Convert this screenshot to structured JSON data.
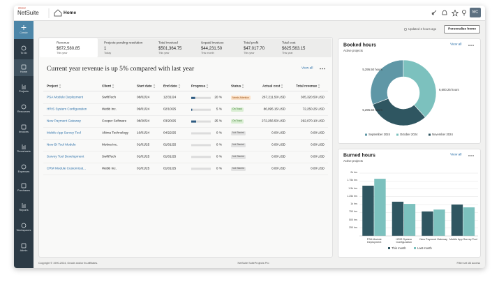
{
  "header": {
    "brand_small": "ORACLE",
    "brand": "NetSuite",
    "page_title": "Home",
    "avatar": "MC"
  },
  "sidebar": [
    "Create",
    "To do",
    "Home",
    "Projects",
    "Resources",
    "Invoices",
    "Timesheets",
    "Expenses",
    "Purchases",
    "Reports",
    "Workspaces",
    "Admin"
  ],
  "toolbar": {
    "updated": "Updated 2 hours ago",
    "button": "Personalize home"
  },
  "kpis": [
    {
      "label": "Revenue",
      "value": "$672,580.85",
      "period": "This year"
    },
    {
      "label": "Projects pending resolution",
      "value": 1,
      "period": "Today"
    },
    {
      "label": "Total invoiced",
      "value": "$501,364.75",
      "period": "This year"
    },
    {
      "label": "Unpaid invoices",
      "value": "$44,231.50",
      "period": "This month"
    },
    {
      "label": "Total profit",
      "value": "$47,017.70",
      "period": "This year"
    },
    {
      "label": "Total cost",
      "value": "$625,563.15",
      "period": "This year"
    }
  ],
  "revenue_panel": {
    "headline": "Current year revenue is up 5% compared with last year",
    "view_all": "View all"
  },
  "table": {
    "columns": [
      "Project",
      "Client",
      "Start date",
      "End date",
      "Progress",
      "Status",
      "Actual cost",
      "Total revenue"
    ],
    "rows": [
      {
        "project": "PSA Module Deployment",
        "client": "SwiftTech",
        "start": "08/02/24",
        "end": "12/31/24",
        "progress": 20,
        "progress_label": "20 %",
        "status": "Needs Attention",
        "actual_cost": "267,211.50 USD",
        "total_revenue": "305,320.50 USD"
      },
      {
        "project": "HRIS System Configuration",
        "client": "Webb Inc.",
        "start": "09/01/24",
        "end": "02/10/25",
        "progress": 5,
        "progress_label": "5 %",
        "status": "On Track",
        "actual_cost": "86,095.15 USD",
        "total_revenue": "72,250.25 USD"
      },
      {
        "project": "New Payment Gateway",
        "client": "Cooper Software",
        "start": "08/20/24",
        "end": "03/20/25",
        "progress": 25,
        "progress_label": "25 %",
        "status": "On Track",
        "actual_cost": "272,256.50 USD",
        "total_revenue": "292,070.10 USD"
      },
      {
        "project": "Mobile App Survey Tool",
        "client": "Altima Technology",
        "start": "10/01/24",
        "end": "04/22/25",
        "progress": 0,
        "progress_label": "0 %",
        "status": "Not Started",
        "actual_cost": "0.00 USD",
        "total_revenue": "0.00 USD"
      },
      {
        "project": "New BI Tool Module",
        "client": "Motiva Inc.",
        "start": "01/01/25",
        "end": "01/01/25",
        "progress": 0,
        "progress_label": "0 %",
        "status": "Not Started",
        "actual_cost": "0.00 USD",
        "total_revenue": "0.00 USD"
      },
      {
        "project": "Survey Tool Development",
        "client": "SwiftTech",
        "start": "01/01/25",
        "end": "01/01/25",
        "progress": 0,
        "progress_label": "0 %",
        "status": "Not Started",
        "actual_cost": "0.00 USD",
        "total_revenue": "0.00 USD"
      },
      {
        "project": "CRM Module Customizat...",
        "client": "Webb Inc.",
        "start": "01/01/25",
        "end": "01/01/25",
        "progress": 0,
        "progress_label": "0 %",
        "status": "Not Started",
        "actual_cost": "0.00 USD",
        "total_revenue": "0.00 USD"
      }
    ]
  },
  "footer": {
    "copyright": "Copyright © 1990-2024, Oracle and/or its affiliates.",
    "product": "NetSuite SuiteProjects Pro",
    "filter": "Filter set: All access"
  },
  "chart_data": [
    {
      "type": "pie",
      "donut": true,
      "title": "Booked hours",
      "subtitle": "Active projects",
      "view_all": "View all",
      "categories": [
        "September 2024",
        "October 2024",
        "November 2024"
      ],
      "values": [
        5295.5,
        6600.25,
        5295.5
      ],
      "value_labels": [
        "5,295.50 hours",
        "6,600.25 hours",
        "5,295.50 hours"
      ],
      "colors": [
        "#5f97a6",
        "#7cc1be",
        "#2f5661"
      ]
    },
    {
      "type": "bar",
      "title": "Burned hours",
      "subtitle": "Active projects",
      "view_all": "View all",
      "categories": [
        "PSA Module Deployment",
        "HRIS System Configuration",
        "New Payment Gateway",
        "Mobile App Survey Tool"
      ],
      "series": [
        {
          "name": "This month",
          "color": "#2f5661",
          "values": [
            1600,
            1090,
            780,
            1000
          ]
        },
        {
          "name": "Last month",
          "color": "#7cc1be",
          "values": [
            1820,
            1020,
            840,
            910
          ]
        }
      ],
      "ylim": [
        0,
        2000
      ],
      "yticks": [
        {
          "value": 250,
          "label": "250 hrs"
        },
        {
          "value": 500,
          "label": "500 hrs"
        },
        {
          "value": 750,
          "label": "750 hrs"
        },
        {
          "value": 1000,
          "label": "1k hrs"
        },
        {
          "value": 1250,
          "label": "1.25k hrs"
        },
        {
          "value": 1500,
          "label": "1.5k hrs"
        },
        {
          "value": 1750,
          "label": "1.75k hrs"
        },
        {
          "value": 2000,
          "label": "2k hrs"
        }
      ],
      "grid": true
    }
  ]
}
